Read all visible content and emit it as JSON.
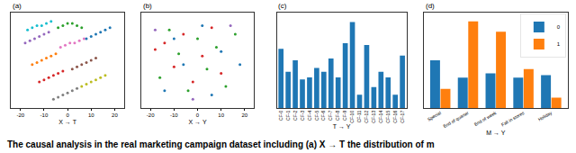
{
  "caption": "The causal analysis in the real marketing campaign dataset including (a) X → T the distribution of m",
  "chart_data": [
    {
      "type": "scatter",
      "title": "(a)",
      "x_label": "X → T",
      "xlim": [
        -24,
        24
      ],
      "xticks": [
        -20,
        -10,
        0,
        10,
        20
      ],
      "ylim": [
        -22,
        22
      ],
      "tick_labels": "x",
      "marker": "circle",
      "series": [
        {
          "color": "#9467bd",
          "x": [
            -18,
            -16,
            -14,
            -12,
            -10,
            -8
          ],
          "y": [
            8,
            9,
            10,
            11,
            12,
            13
          ]
        },
        {
          "color": "#17becf",
          "x": [
            -17,
            -15,
            -13,
            -11,
            -9,
            -7
          ],
          "y": [
            14,
            15,
            16,
            16,
            17,
            18
          ]
        },
        {
          "color": "#2ca02c",
          "x": [
            -4,
            -2,
            0,
            2,
            4,
            6
          ],
          "y": [
            15,
            16,
            17,
            17,
            16,
            15
          ]
        },
        {
          "color": "#ff7f0e",
          "x": [
            -15,
            -13,
            -11,
            -9,
            -7,
            -5
          ],
          "y": [
            -2,
            -1,
            0,
            1,
            2,
            3
          ]
        },
        {
          "color": "#e377c2",
          "x": [
            -3,
            -1,
            1,
            3,
            5,
            7
          ],
          "y": [
            6,
            7,
            8,
            8,
            9,
            10
          ]
        },
        {
          "color": "#1f77b4",
          "x": [
            8,
            10,
            12,
            14,
            16,
            18
          ],
          "y": [
            10,
            11,
            12,
            13,
            14,
            15
          ]
        },
        {
          "color": "#d62728",
          "x": [
            -12,
            -10,
            -8,
            -6,
            -4,
            -2
          ],
          "y": [
            -10,
            -9,
            -8,
            -7,
            -6,
            -5
          ]
        },
        {
          "color": "#8c564b",
          "x": [
            2,
            4,
            6,
            8,
            10,
            12
          ],
          "y": [
            -4,
            -3,
            -2,
            -1,
            0,
            1
          ]
        },
        {
          "color": "#bcbd22",
          "x": [
            6,
            8,
            10,
            12,
            14,
            16
          ],
          "y": [
            -12,
            -11,
            -10,
            -9,
            -8,
            -7
          ]
        },
        {
          "color": "#7f7f7f",
          "x": [
            -6,
            -4,
            -2,
            0,
            2,
            4
          ],
          "y": [
            -18,
            -17,
            -16,
            -15,
            -14,
            -13
          ]
        }
      ]
    },
    {
      "type": "scatter",
      "title": "(b)",
      "x_label": "X → Y",
      "xlim": [
        -24,
        24
      ],
      "xticks": [
        -20,
        -10,
        0,
        10,
        20
      ],
      "ylim": [
        -22,
        22
      ],
      "tick_labels": "x",
      "marker": "circle",
      "series": [
        {
          "color": "#d62728",
          "x": [
            -18,
            -14,
            -10,
            -6,
            -2,
            2,
            6,
            10
          ],
          "y": [
            5,
            8,
            -3,
            12,
            -10,
            2,
            15,
            -6
          ]
        },
        {
          "color": "#2ca02c",
          "x": [
            -16,
            -12,
            -8,
            -4,
            0,
            4,
            8,
            12,
            16
          ],
          "y": [
            -8,
            14,
            3,
            -14,
            10,
            -4,
            6,
            -12,
            12
          ]
        },
        {
          "color": "#1f77b4",
          "x": [
            -14,
            -6,
            2,
            10,
            18,
            -10,
            6
          ],
          "y": [
            -14,
            -2,
            16,
            4,
            -2,
            10,
            -16
          ]
        },
        {
          "color": "#9467bd",
          "x": [
            -2,
            14,
            -18
          ],
          "y": [
            -18,
            16,
            14
          ]
        }
      ]
    },
    {
      "type": "bar",
      "title": "(c)",
      "x_label": "T → Y",
      "color": "#1f77b4",
      "categories": [
        "CF-0",
        "CF-1",
        "CF-2",
        "CF-3",
        "CF-4",
        "CF-5",
        "CF-6",
        "CF-7",
        "CF-8",
        "CF-9",
        "CF-10",
        "CF-11",
        "CF-12",
        "CF-13",
        "CF-14",
        "CF-15",
        "CF-16",
        "CF-17"
      ],
      "values": [
        0.62,
        0.38,
        0.5,
        0.3,
        0.32,
        0.42,
        0.38,
        0.52,
        0.32,
        0.68,
        0.9,
        0.14,
        0.66,
        0.22,
        0.38,
        0.32,
        0.14,
        0.55
      ],
      "ylim": [
        0,
        1
      ],
      "tick_labels": "x"
    },
    {
      "type": "bar",
      "title": "(d)",
      "x_label": "M → Y",
      "categories": [
        "Special",
        "End of quarter",
        "End of week",
        "Fall in stores",
        "Holiday"
      ],
      "series": [
        {
          "name": "0",
          "color": "#1f77b4",
          "values": [
            0.55,
            0.35,
            0.4,
            0.35,
            0.38
          ]
        },
        {
          "name": "1",
          "color": "#ff7f0e",
          "values": [
            0.22,
            1.0,
            0.88,
            0.45,
            0.12
          ]
        }
      ],
      "ylim": [
        0,
        1.1
      ],
      "tick_labels": "x",
      "legend": "upper right"
    }
  ]
}
